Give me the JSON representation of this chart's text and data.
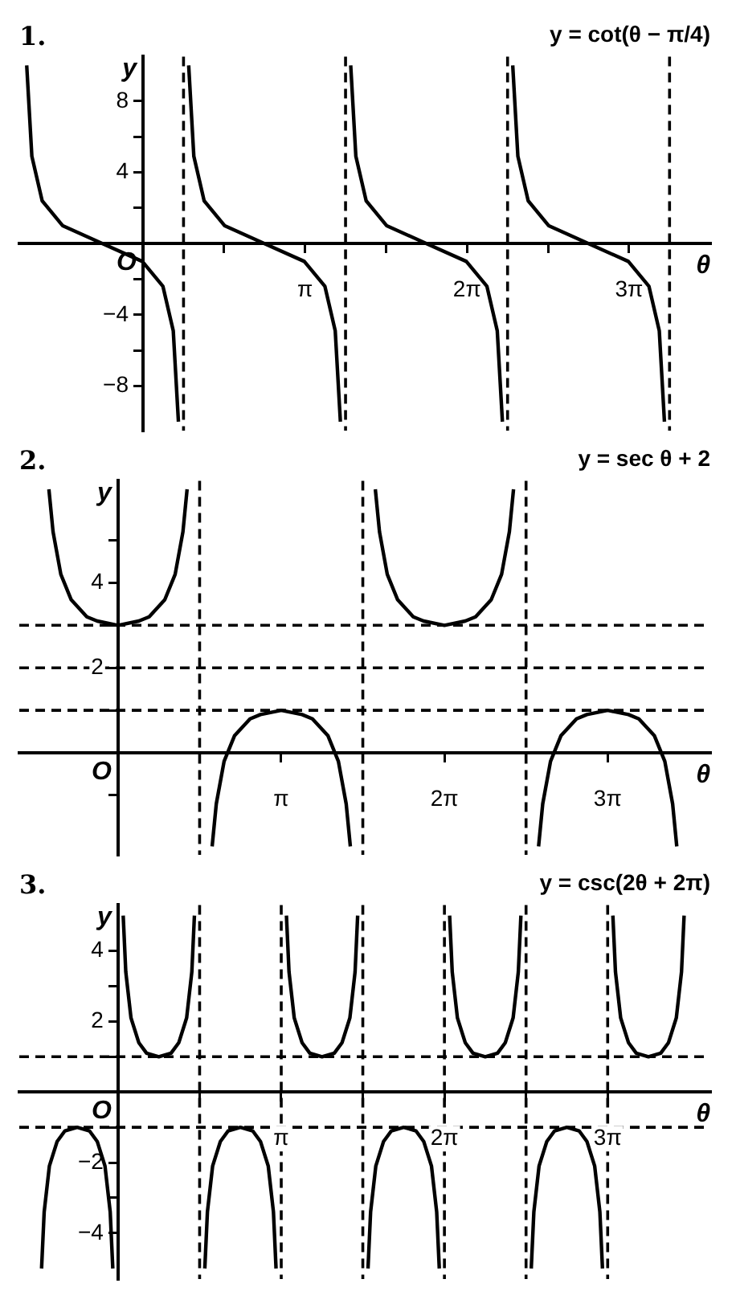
{
  "chart_data": [
    {
      "type": "line",
      "title": "1.",
      "xlabel": "θ",
      "ylabel": "y",
      "marker": "none",
      "xlim": [
        -2.4,
        11
      ],
      "ylim": [
        -10.5,
        10.5
      ],
      "xticks": [
        {
          "value": 1.5708,
          "label": null
        },
        {
          "value": 3.1416,
          "label": "π"
        },
        {
          "value": 4.7124,
          "label": null
        },
        {
          "value": 6.2832,
          "label": "2π"
        },
        {
          "value": 7.854,
          "label": null
        },
        {
          "value": 9.4248,
          "label": "3π"
        }
      ],
      "yticks": [
        {
          "value": -8,
          "label": "−8"
        },
        {
          "value": -6,
          "label": null
        },
        {
          "value": -4,
          "label": "−4"
        },
        {
          "value": -2,
          "label": null
        },
        {
          "value": 2,
          "label": null
        },
        4,
        {
          "value": 6,
          "label": null
        },
        8
      ],
      "series": [
        {
          "color": "#000000",
          "x": [
            -2.256,
            -2.156,
            -1.956,
            -1.556,
            -0.785,
            -0.014,
            0.386,
            0.586,
            0.686,
            0.785,
            0.885,
            0.985,
            1.185,
            1.585,
            2.356,
            3.127,
            3.527,
            3.727,
            3.827,
            3.927,
            4.027,
            4.127,
            4.327,
            4.727,
            5.498,
            6.269,
            6.669,
            6.869,
            6.969,
            7.069,
            7.169,
            7.269,
            7.469,
            7.869,
            8.64,
            9.411,
            9.811,
            10.011,
            10.111
          ],
          "values": [
            10,
            4.9,
            2.4,
            1,
            0,
            -1,
            -2.4,
            -4.9,
            -10,
            null,
            10,
            4.9,
            2.4,
            1,
            0,
            -1,
            -2.4,
            -4.9,
            -10,
            null,
            10,
            4.9,
            2.4,
            1,
            0,
            -1,
            -2.4,
            -4.9,
            -10,
            null,
            10,
            4.9,
            2.4,
            1,
            0,
            -1,
            -2.4,
            -4.9,
            -10
          ]
        }
      ],
      "ref_lines": [
        {
          "axis": "x",
          "value": 0.785,
          "color": "#000000",
          "line_style": "dashed"
        },
        {
          "axis": "x",
          "value": 3.927,
          "color": "#000000",
          "line_style": "dashed"
        },
        {
          "axis": "x",
          "value": 7.069,
          "color": "#000000",
          "line_style": "dashed"
        },
        {
          "axis": "x",
          "value": 10.21,
          "color": "#000000",
          "line_style": "dashed"
        }
      ],
      "annotations": [
        "O",
        "y = cot(θ − π/4)"
      ]
    },
    {
      "type": "line",
      "title": "2.",
      "xlabel": "θ",
      "ylabel": "y",
      "marker": "none",
      "xlim": [
        -1.9,
        11.4
      ],
      "ylim": [
        -2.4,
        6.4
      ],
      "xticks": [
        {
          "value": 1.5708,
          "label": null
        },
        {
          "value": 3.1416,
          "label": "π"
        },
        {
          "value": 4.7124,
          "label": null
        },
        {
          "value": 6.2832,
          "label": "2π"
        },
        {
          "value": 7.854,
          "label": null
        },
        {
          "value": 9.4248,
          "label": "3π"
        }
      ],
      "yticks": [
        {
          "value": -1,
          "label": null
        },
        {
          "value": 1,
          "label": null
        },
        2,
        {
          "value": 3,
          "label": null
        },
        4,
        {
          "value": 5,
          "label": null
        }
      ],
      "series": [
        {
          "color": "#000000",
          "x": [
            -1.33,
            -1.25,
            -1.1,
            -0.9,
            -0.6,
            -0.4,
            0,
            0.4,
            0.6,
            0.9,
            1.1,
            1.25,
            1.33,
            1.571,
            1.812,
            1.892,
            2.042,
            2.242,
            2.542,
            2.742,
            3.142,
            3.542,
            3.742,
            4.042,
            4.242,
            4.392,
            4.472,
            4.712,
            4.953,
            5.033,
            5.183,
            5.383,
            5.683,
            5.883,
            6.283,
            6.683,
            6.883,
            7.183,
            7.383,
            7.533,
            7.613,
            7.854,
            8.095,
            8.175,
            8.325,
            8.525,
            8.825,
            9.025,
            9.425,
            9.825,
            10.025,
            10.325,
            10.525,
            10.675,
            10.755
          ],
          "values": [
            6.2,
            5.2,
            4.2,
            3.6,
            3.2,
            3.1,
            3,
            3.1,
            3.2,
            3.6,
            4.2,
            5.2,
            6.2,
            null,
            -2.2,
            -1.2,
            -0.2,
            0.4,
            0.8,
            0.9,
            1,
            0.9,
            0.8,
            0.4,
            -0.2,
            -1.2,
            -2.2,
            null,
            6.2,
            5.2,
            4.2,
            3.6,
            3.2,
            3.1,
            3,
            3.1,
            3.2,
            3.6,
            4.2,
            5.2,
            6.2,
            null,
            -2.2,
            -1.2,
            -0.2,
            0.4,
            0.8,
            0.9,
            1,
            0.9,
            0.8,
            0.4,
            -0.2,
            -1.2,
            -2.2
          ]
        }
      ],
      "ref_lines": [
        {
          "axis": "x",
          "value": 1.571,
          "color": "#000000",
          "line_style": "dashed"
        },
        {
          "axis": "x",
          "value": 4.712,
          "color": "#000000",
          "line_style": "dashed"
        },
        {
          "axis": "x",
          "value": 7.854,
          "color": "#000000",
          "line_style": "dashed"
        },
        {
          "axis": "y",
          "value": 1,
          "color": "#000000",
          "line_style": "dashed"
        },
        {
          "axis": "y",
          "value": 2,
          "color": "#000000",
          "line_style": "dashed"
        },
        {
          "axis": "y",
          "value": 3,
          "color": "#000000",
          "line_style": "dashed"
        }
      ],
      "annotations": [
        "O",
        "y = sec θ + 2"
      ]
    },
    {
      "type": "line",
      "title": "3.",
      "xlabel": "θ",
      "ylabel": "y",
      "marker": "none",
      "xlim": [
        -1.9,
        11.4
      ],
      "ylim": [
        -5.3,
        5.3
      ],
      "xticks": [
        {
          "value": 1.5708,
          "label": null
        },
        {
          "value": 3.1416,
          "label": "π"
        },
        {
          "value": 4.7124,
          "label": null
        },
        {
          "value": 6.2832,
          "label": "2π"
        },
        {
          "value": 7.854,
          "label": null
        },
        {
          "value": 9.4248,
          "label": "3π"
        }
      ],
      "yticks": [
        {
          "value": -4,
          "label": "−4"
        },
        {
          "value": -3,
          "label": null
        },
        {
          "value": -2,
          "label": "−2"
        },
        {
          "value": -1,
          "label": null
        },
        {
          "value": 1,
          "label": null
        },
        2,
        {
          "value": 3,
          "label": null
        },
        4
      ],
      "series": [
        {
          "color": "#000000",
          "x": [
            -1.471,
            -1.421,
            -1.321,
            -1.171,
            -1.021,
            -0.785,
            -0.55,
            -0.4,
            -0.25,
            -0.15,
            -0.1,
            0,
            0.1,
            0.15,
            0.25,
            0.4,
            0.55,
            0.785,
            1.021,
            1.171,
            1.321,
            1.421,
            1.471,
            1.571,
            1.671,
            1.721,
            1.821,
            1.971,
            2.121,
            2.356,
            2.592,
            2.742,
            2.892,
            2.992,
            3.042,
            3.142,
            3.242,
            3.292,
            3.392,
            3.542,
            3.692,
            3.927,
            4.163,
            4.313,
            4.463,
            4.563,
            4.613,
            4.712,
            4.812,
            4.862,
            4.962,
            5.112,
            5.262,
            5.498,
            5.734,
            5.884,
            6.034,
            6.134,
            6.184,
            6.283,
            6.383,
            6.433,
            6.533,
            6.683,
            6.833,
            7.069,
            7.305,
            7.455,
            7.605,
            7.705,
            7.755,
            7.854,
            7.954,
            8.004,
            8.104,
            8.254,
            8.404,
            8.639,
            8.875,
            9.025,
            9.175,
            9.275,
            9.325,
            9.425,
            9.525,
            9.575,
            9.675,
            9.825,
            9.975,
            10.21,
            10.446,
            10.596,
            10.746,
            10.846,
            10.896
          ],
          "values": [
            -5,
            -3.4,
            -2.1,
            -1.4,
            -1.1,
            -1,
            -1.1,
            -1.4,
            -2.1,
            -3.4,
            -5,
            null,
            5,
            3.4,
            2.1,
            1.4,
            1.1,
            1,
            1.1,
            1.4,
            2.1,
            3.4,
            5,
            null,
            -5,
            -3.4,
            -2.1,
            -1.4,
            -1.1,
            -1,
            -1.1,
            -1.4,
            -2.1,
            -3.4,
            -5,
            null,
            5,
            3.4,
            2.1,
            1.4,
            1.1,
            1,
            1.1,
            1.4,
            2.1,
            3.4,
            5,
            null,
            -5,
            -3.4,
            -2.1,
            -1.4,
            -1.1,
            -1,
            -1.1,
            -1.4,
            -2.1,
            -3.4,
            -5,
            null,
            5,
            3.4,
            2.1,
            1.4,
            1.1,
            1,
            1.1,
            1.4,
            2.1,
            3.4,
            5,
            null,
            -5,
            -3.4,
            -2.1,
            -1.4,
            -1.1,
            -1,
            -1.1,
            -1.4,
            -2.1,
            -3.4,
            -5,
            null,
            5,
            3.4,
            2.1,
            1.4,
            1.1,
            1,
            1.1,
            1.4,
            2.1,
            3.4,
            5
          ]
        }
      ],
      "ref_lines": [
        {
          "axis": "x",
          "value": 1.571,
          "color": "#000000",
          "line_style": "dashed"
        },
        {
          "axis": "x",
          "value": 3.142,
          "color": "#000000",
          "line_style": "dashed"
        },
        {
          "axis": "x",
          "value": 4.712,
          "color": "#000000",
          "line_style": "dashed"
        },
        {
          "axis": "x",
          "value": 6.283,
          "color": "#000000",
          "line_style": "dashed"
        },
        {
          "axis": "x",
          "value": 7.854,
          "color": "#000000",
          "line_style": "dashed"
        },
        {
          "axis": "x",
          "value": 9.425,
          "color": "#000000",
          "line_style": "dashed"
        },
        {
          "axis": "y",
          "value": 1,
          "color": "#000000",
          "line_style": "dashed"
        },
        {
          "axis": "y",
          "value": -1,
          "color": "#000000",
          "line_style": "dashed"
        }
      ],
      "annotations": [
        "O",
        "y = csc(2θ + 2π)"
      ]
    }
  ]
}
